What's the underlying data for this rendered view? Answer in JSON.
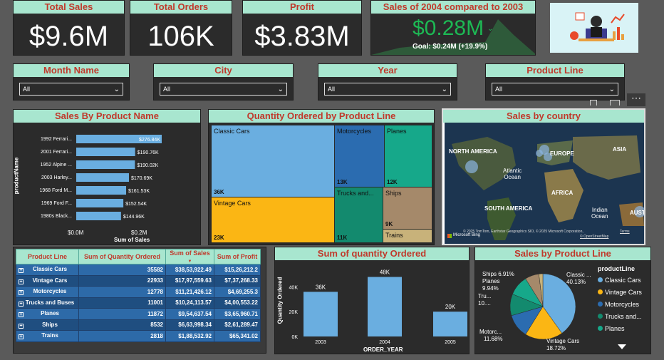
{
  "kpis": {
    "sales": {
      "title": "Total Sales",
      "value": "$9.6M"
    },
    "orders": {
      "title": "Total Orders",
      "value": "106K"
    },
    "profit": {
      "title": "Profit",
      "value": "$3.83M"
    },
    "compare": {
      "title": "Sales of 2004 compared to 2003",
      "value": "$0.28M",
      "goal": "Goal: $0.24M (+19.9%)"
    }
  },
  "slicers": [
    {
      "title": "Month Name",
      "value": "All"
    },
    {
      "title": "City",
      "value": "All"
    },
    {
      "title": "Year",
      "value": "All"
    },
    {
      "title": "Product Line",
      "value": "All"
    }
  ],
  "sales_by_product": {
    "title": "Sales By Product Name",
    "ylabel": "productName",
    "xlabel": "Sum of Sales",
    "ticks": [
      "$0.0M",
      "$0.2M"
    ],
    "items": [
      {
        "name": "1992 Ferrari...",
        "value": 276.84,
        "label": "$276.84K"
      },
      {
        "name": "2001 Ferrari...",
        "value": 190.76,
        "label": "$190.76K"
      },
      {
        "name": "1952 Alpine ...",
        "value": 190.02,
        "label": "$190.02K"
      },
      {
        "name": "2003 Harley...",
        "value": 170.69,
        "label": "$170.69K"
      },
      {
        "name": "1968 Ford M...",
        "value": 161.53,
        "label": "$161.53K"
      },
      {
        "name": "1969 Ford F...",
        "value": 152.54,
        "label": "$152.54K"
      },
      {
        "name": "1980s Black...",
        "value": 144.96,
        "label": "$144.96K"
      }
    ]
  },
  "treemap": {
    "title": "Quantity Ordered by Product Line",
    "items": [
      {
        "name": "Classic Cars",
        "label": "36K",
        "color": "#6aaee0"
      },
      {
        "name": "Vintage Cars",
        "label": "23K",
        "color": "#fbb614"
      },
      {
        "name": "Motorcycles",
        "label": "13K",
        "color": "#2b6cb0"
      },
      {
        "name": "Planes",
        "label": "12K",
        "color": "#16a88a"
      },
      {
        "name": "Trucks and...",
        "label": "11K",
        "color": "#138a6e"
      },
      {
        "name": "Ships",
        "label": "9K",
        "color": "#a5896a"
      },
      {
        "name": "Trains",
        "label": "",
        "color": "#c8b27a"
      }
    ]
  },
  "map": {
    "title": "Sales by country",
    "labels": {
      "na": "NORTH AMERICA",
      "eu": "EUROPE",
      "asia": "ASIA",
      "atl": "Atlantic\nOcean",
      "af": "AFRICA",
      "sa": "SOUTH AMERICA",
      "ind": "Indian\nOcean",
      "aus": "AUST"
    },
    "credits": "© 2025 TomTom, Earthstar Geographics SIO, © 2025 Microsoft Corporation,",
    "terms": "Terms",
    "osm": "© OpenStreetMap",
    "logo": "Microsoft Bing"
  },
  "table": {
    "headers": [
      "Product Line",
      "Sum of Quantity Ordered",
      "Sum of Sales",
      "Sum of Profit"
    ],
    "rows": [
      [
        "Classic Cars",
        "35582",
        "$38,53,922.49",
        "$15,26,212.2"
      ],
      [
        "Vintage Cars",
        "22933",
        "$17,97,559.63",
        "$7,37,268.33"
      ],
      [
        "Motorcycles",
        "12778",
        "$11,21,426.12",
        "$4,69,255.3"
      ],
      [
        "Trucks and Buses",
        "11001",
        "$10,24,113.57",
        "$4,00,553.22"
      ],
      [
        "Planes",
        "11872",
        "$9,54,637.54",
        "$3,65,960.71"
      ],
      [
        "Ships",
        "8532",
        "$6,63,998.34",
        "$2,61,289.47"
      ],
      [
        "Trains",
        "2818",
        "$1,88,532.92",
        "$65,341.02"
      ]
    ]
  },
  "chart_data": [
    {
      "type": "bar",
      "title": "Sum of quantity Ordered",
      "xlabel": "ORDER_YEAR",
      "ylabel": "Quantity Ordered",
      "categories": [
        "2003",
        "2004",
        "2005"
      ],
      "values": [
        36,
        48,
        20
      ],
      "labels": [
        "36K",
        "48K",
        "20K"
      ],
      "yticks": [
        "0K",
        "20K",
        "40K"
      ],
      "ylim": [
        0,
        50
      ],
      "color": "#6aaee0"
    },
    {
      "type": "pie",
      "title": "Sales by Product Line",
      "legend_title": "productLine",
      "slices": [
        {
          "name": "Classic Cars",
          "value": 40.13,
          "color": "#6aaee0"
        },
        {
          "name": "Vintage Cars",
          "value": 18.72,
          "color": "#fbb614"
        },
        {
          "name": "Motorcycles",
          "value": 11.68,
          "color": "#2b6cb0"
        },
        {
          "name": "Trucks and...",
          "value": 10.66,
          "color": "#138a6e"
        },
        {
          "name": "Planes",
          "value": 9.94,
          "color": "#16a88a"
        },
        {
          "name": "Ships",
          "value": 6.91,
          "color": "#a5896a"
        },
        {
          "name": "Trains",
          "value": 1.96,
          "color": "#c8b27a"
        }
      ],
      "slice_labels": {
        "classic": [
          "Classic ...",
          "40.13%"
        ],
        "vintage": [
          "Vintage Cars",
          "18.72%"
        ],
        "motor": [
          "Motorc...",
          "11.68%"
        ],
        "trucks": [
          "Tru...",
          "10...."
        ],
        "planes": [
          "Planes",
          "9.94%"
        ],
        "ships": [
          "Ships 6.91%"
        ]
      },
      "legend": [
        "Classic Cars",
        "Vintage Cars",
        "Motorcycles",
        "Trucks and...",
        "Planes"
      ]
    }
  ]
}
